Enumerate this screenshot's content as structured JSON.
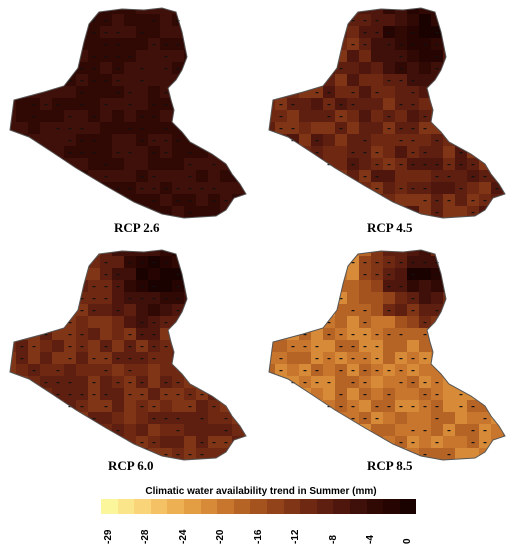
{
  "panels": [
    {
      "id": "rcp26",
      "label": "RCP 2.6",
      "base": 1.5,
      "spread": 2.0,
      "north_dark": 0.0
    },
    {
      "id": "rcp45",
      "label": "RCP 4.5",
      "base": 4.0,
      "spread": 3.0,
      "north_dark": 1.0
    },
    {
      "id": "rcp60",
      "label": "RCP 6.0",
      "base": 4.5,
      "spread": 3.0,
      "north_dark": 1.0
    },
    {
      "id": "rcp85",
      "label": "RCP 8.5",
      "base": 9.5,
      "spread": 3.0,
      "north_dark": 1.0
    }
  ],
  "legend": {
    "title": "Climatic water availability trend in Summer  (mm)",
    "ticks": [
      "-29",
      "-28",
      "-24",
      "-20",
      "-16",
      "-12",
      "-8",
      "-4",
      "0"
    ],
    "colors": [
      "#fbf59b",
      "#fbe58a",
      "#f9d478",
      "#f4c265",
      "#edb052",
      "#e39d42",
      "#d78a37",
      "#c8762e",
      "#b66426",
      "#a4531f",
      "#92431a",
      "#803516",
      "#6f2913",
      "#5f1f10",
      "#4e160c",
      "#3f0f09",
      "#300804",
      "#250402",
      "#1a0201"
    ]
  }
}
